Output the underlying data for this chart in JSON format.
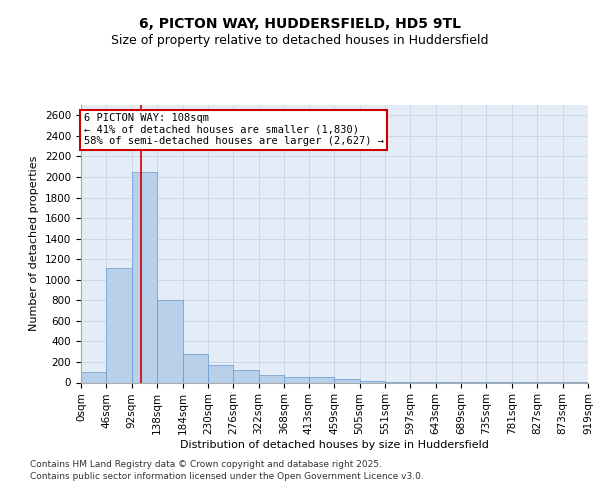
{
  "title1": "6, PICTON WAY, HUDDERSFIELD, HD5 9TL",
  "title2": "Size of property relative to detached houses in Huddersfield",
  "xlabel": "Distribution of detached houses by size in Huddersfield",
  "ylabel": "Number of detached properties",
  "bin_labels": [
    "0sqm",
    "46sqm",
    "92sqm",
    "138sqm",
    "184sqm",
    "230sqm",
    "276sqm",
    "322sqm",
    "368sqm",
    "413sqm",
    "459sqm",
    "505sqm",
    "551sqm",
    "597sqm",
    "643sqm",
    "689sqm",
    "735sqm",
    "781sqm",
    "827sqm",
    "873sqm",
    "919sqm"
  ],
  "bin_edges": [
    0,
    46,
    92,
    138,
    184,
    230,
    276,
    322,
    368,
    413,
    459,
    505,
    551,
    597,
    643,
    689,
    735,
    781,
    827,
    873,
    919
  ],
  "bar_values": [
    100,
    1110,
    2050,
    800,
    280,
    170,
    120,
    70,
    50,
    50,
    30,
    10,
    5,
    5,
    3,
    2,
    1,
    1,
    1,
    1
  ],
  "bar_color": "#b8d0ea",
  "bar_edgecolor": "#6699cc",
  "grid_color": "#c8d4e8",
  "bg_color": "#e4ecf7",
  "red_line_x": 108,
  "annotation_title": "6 PICTON WAY: 108sqm",
  "annotation_line1": "← 41% of detached houses are smaller (1,830)",
  "annotation_line2": "58% of semi-detached houses are larger (2,627) →",
  "annotation_box_color": "#ffffff",
  "annotation_box_edgecolor": "#cc0000",
  "red_line_color": "#cc0000",
  "ylim": [
    0,
    2700
  ],
  "yticks": [
    0,
    200,
    400,
    600,
    800,
    1000,
    1200,
    1400,
    1600,
    1800,
    2000,
    2200,
    2400,
    2600
  ],
  "footer1": "Contains HM Land Registry data © Crown copyright and database right 2025.",
  "footer2": "Contains public sector information licensed under the Open Government Licence v3.0.",
  "title1_fontsize": 10,
  "title2_fontsize": 9,
  "axis_label_fontsize": 8,
  "tick_fontsize": 7.5,
  "footer_fontsize": 6.5
}
